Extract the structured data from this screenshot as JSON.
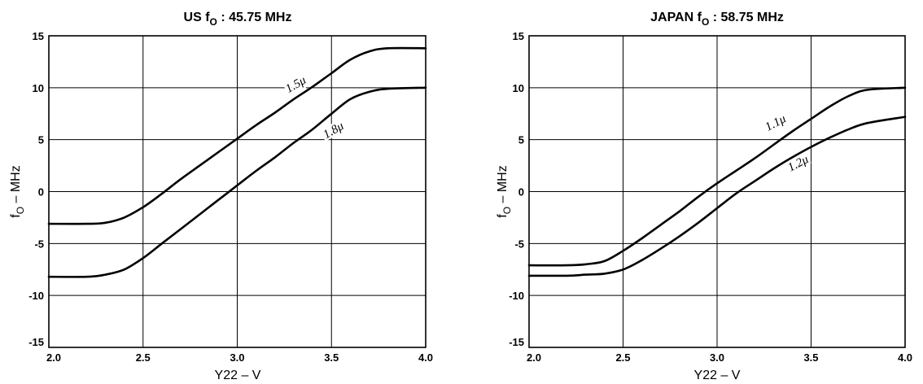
{
  "chart_data": [
    {
      "type": "line",
      "title": "US f",
      "title_sub": "O",
      "title_rest": " : 45.75 MHz",
      "xlabel": "Y22 – V",
      "ylabel": "f",
      "ylabel_sub": "O",
      "ylabel_rest": " – MHz",
      "xlim": [
        2.0,
        4.0
      ],
      "ylim": [
        -15,
        15
      ],
      "xticks": [
        2.0,
        2.5,
        3.0,
        3.5,
        4.0
      ],
      "xtick_labels": [
        "2.0",
        "2.5",
        "3.0",
        "3.5",
        "4.0"
      ],
      "yticks": [
        -15,
        -10,
        -5,
        0,
        5,
        10,
        15
      ],
      "ytick_labels": [
        "-15",
        "-10",
        "-5",
        "0",
        "5",
        "10",
        "15"
      ],
      "grid": true,
      "series": [
        {
          "name": "1.5μ",
          "label_at": [
            3.32,
            10.0
          ],
          "label_angle": -30,
          "x": [
            2.0,
            2.2,
            2.3,
            2.4,
            2.5,
            2.6,
            2.7,
            2.8,
            2.9,
            3.0,
            3.1,
            3.2,
            3.3,
            3.4,
            3.5,
            3.6,
            3.7,
            3.8,
            4.0
          ],
          "y": [
            -3.1,
            -3.1,
            -3.0,
            -2.5,
            -1.5,
            -0.2,
            1.2,
            2.5,
            3.8,
            5.1,
            6.4,
            7.6,
            8.9,
            10.1,
            11.4,
            12.7,
            13.5,
            13.8,
            13.8
          ]
        },
        {
          "name": "1.8μ",
          "label_at": [
            3.52,
            5.6
          ],
          "label_angle": -30,
          "x": [
            2.0,
            2.2,
            2.3,
            2.4,
            2.5,
            2.6,
            2.7,
            2.8,
            2.9,
            3.0,
            3.1,
            3.2,
            3.3,
            3.4,
            3.5,
            3.6,
            3.7,
            3.8,
            4.0
          ],
          "y": [
            -8.2,
            -8.2,
            -8.0,
            -7.5,
            -6.4,
            -5.0,
            -3.6,
            -2.2,
            -0.8,
            0.6,
            2.0,
            3.3,
            4.7,
            6.0,
            7.5,
            8.9,
            9.6,
            9.9,
            10.0
          ]
        }
      ]
    },
    {
      "type": "line",
      "title": "JAPAN f",
      "title_sub": "O",
      "title_rest": " : 58.75 MHz",
      "xlabel": "Y22 – V",
      "ylabel": "f",
      "ylabel_sub": "O",
      "ylabel_rest": " – MHz",
      "xlim": [
        2.0,
        4.0
      ],
      "ylim": [
        -15,
        15
      ],
      "xticks": [
        2.0,
        2.5,
        3.0,
        3.5,
        4.0
      ],
      "xtick_labels": [
        "2.0",
        "2.5",
        "3.0",
        "3.5",
        "4.0"
      ],
      "yticks": [
        -15,
        -10,
        -5,
        0,
        5,
        10,
        15
      ],
      "ytick_labels": [
        "-15",
        "-10",
        "-5",
        "0",
        "5",
        "10",
        "15"
      ],
      "grid": true,
      "series": [
        {
          "name": "1.1μ",
          "label_at": [
            3.32,
            6.3
          ],
          "label_angle": -28,
          "x": [
            2.0,
            2.2,
            2.3,
            2.4,
            2.5,
            2.6,
            2.7,
            2.8,
            2.9,
            3.0,
            3.1,
            3.2,
            3.3,
            3.4,
            3.5,
            3.6,
            3.7,
            3.8,
            4.0
          ],
          "y": [
            -7.1,
            -7.1,
            -7.0,
            -6.7,
            -5.7,
            -4.5,
            -3.2,
            -1.9,
            -0.5,
            0.8,
            2.0,
            3.2,
            4.5,
            5.8,
            7.0,
            8.2,
            9.2,
            9.8,
            10.0
          ]
        },
        {
          "name": "1.2μ",
          "label_at": [
            3.44,
            2.4
          ],
          "label_angle": -28,
          "x": [
            2.0,
            2.2,
            2.3,
            2.4,
            2.5,
            2.6,
            2.7,
            2.8,
            2.9,
            3.0,
            3.1,
            3.2,
            3.3,
            3.4,
            3.5,
            3.6,
            3.7,
            3.8,
            4.0
          ],
          "y": [
            -8.1,
            -8.1,
            -8.0,
            -7.9,
            -7.5,
            -6.6,
            -5.5,
            -4.3,
            -3.0,
            -1.6,
            -0.2,
            1.0,
            2.2,
            3.3,
            4.3,
            5.2,
            6.0,
            6.6,
            7.2
          ]
        }
      ]
    }
  ]
}
